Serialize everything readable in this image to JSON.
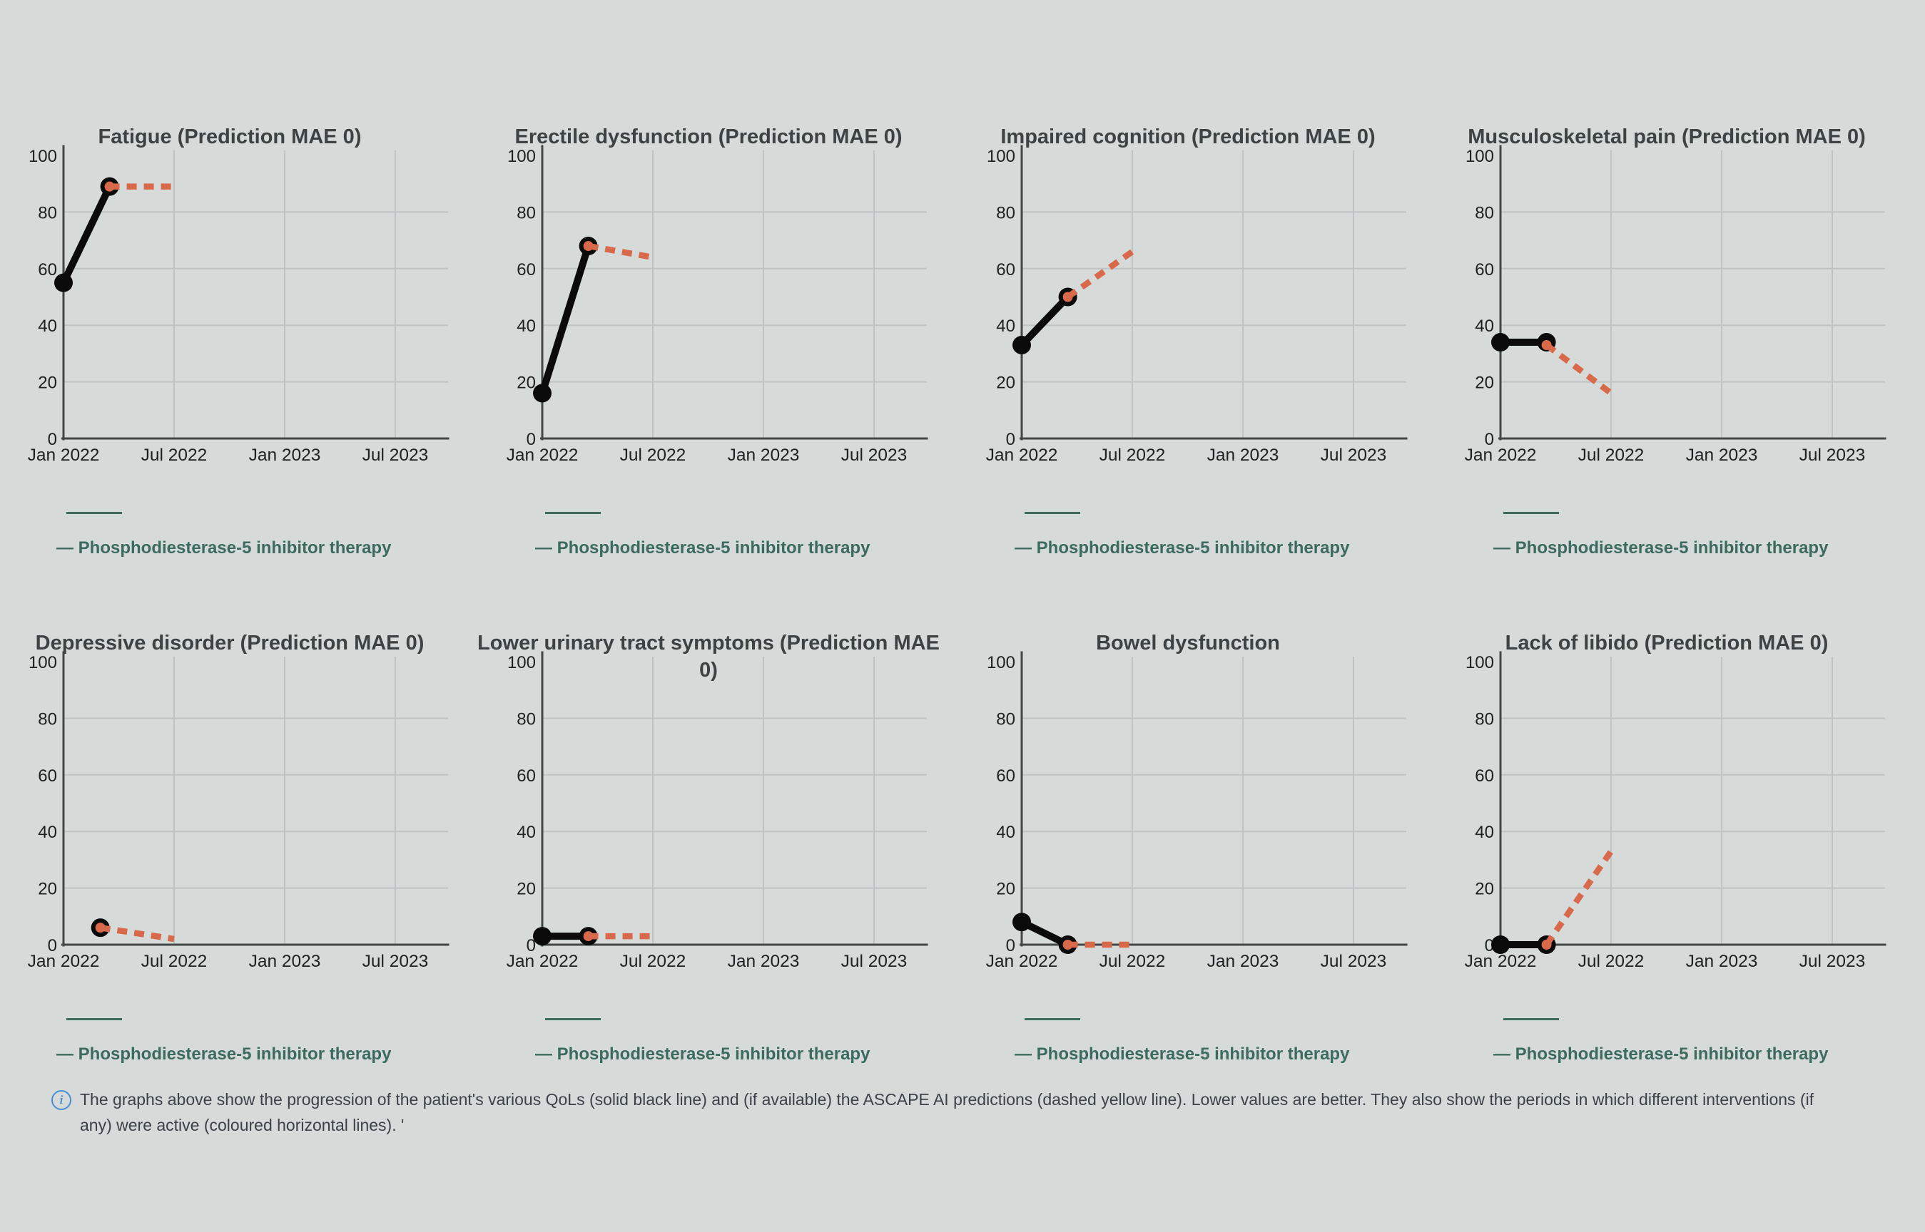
{
  "legend": {
    "label": "— Phosphodiesterase-5 inhibitor therapy"
  },
  "note": {
    "icon_glyph": "i",
    "text": "The graphs above show the progression of the patient's various QoLs (solid black line) and (if available) the ASCAPE AI predictions (dashed yellow line). Lower values are better. They also show the periods in which different interventions (if any) were active (coloured horizontal lines). '"
  },
  "colors": {
    "background": "#d6dbda",
    "observed_line": "#0b0b0b",
    "prediction_line": "#d8694a",
    "intervention_line": "#3c6b5e",
    "legend_text": "#3c6b5e",
    "grid": "#bdc4c3",
    "axis": "#424747",
    "title_text": "#3d4343",
    "tick_text": "#1d2121",
    "note_text": "#3b4147",
    "info_icon": "#4a8fd3"
  },
  "chart_data": [
    {
      "type": "line",
      "title": "Fatigue (Prediction MAE 0)",
      "x_unit": "months since Jan 2022",
      "xtick_months": [
        0,
        6,
        12,
        18
      ],
      "xtick_labels": [
        "Jan 2022",
        "Jul 2022",
        "Jan 2023",
        "Jul 2023"
      ],
      "ylim": [
        0,
        100
      ],
      "yticks": [
        0,
        20,
        40,
        60,
        80,
        100
      ],
      "series": [
        {
          "name": "Patient QoL (observed)",
          "style": "solid-black",
          "points": [
            [
              0,
              55
            ],
            [
              2.5,
              89
            ]
          ]
        },
        {
          "name": "ASCAPE AI prediction",
          "style": "dashed-orange",
          "points": [
            [
              2.5,
              89
            ],
            [
              6,
              89
            ]
          ]
        }
      ],
      "intervention_period_label": "Phosphodiesterase-5 inhibitor therapy"
    },
    {
      "type": "line",
      "title": "Erectile dysfunction (Prediction MAE 0)",
      "x_unit": "months since Jan 2022",
      "xtick_months": [
        0,
        6,
        12,
        18
      ],
      "xtick_labels": [
        "Jan 2022",
        "Jul 2022",
        "Jan 2023",
        "Jul 2023"
      ],
      "ylim": [
        0,
        100
      ],
      "yticks": [
        0,
        20,
        40,
        60,
        80,
        100
      ],
      "series": [
        {
          "name": "Patient QoL (observed)",
          "style": "solid-black",
          "points": [
            [
              0,
              16
            ],
            [
              2.5,
              68
            ]
          ]
        },
        {
          "name": "ASCAPE AI prediction",
          "style": "dashed-orange",
          "points": [
            [
              2.5,
              68
            ],
            [
              6,
              64
            ]
          ]
        }
      ],
      "intervention_period_label": "Phosphodiesterase-5 inhibitor therapy"
    },
    {
      "type": "line",
      "title": "Impaired cognition (Prediction MAE 0)",
      "x_unit": "months since Jan 2022",
      "xtick_months": [
        0,
        6,
        12,
        18
      ],
      "xtick_labels": [
        "Jan 2022",
        "Jul 2022",
        "Jan 2023",
        "Jul 2023"
      ],
      "ylim": [
        0,
        100
      ],
      "yticks": [
        0,
        20,
        40,
        60,
        80,
        100
      ],
      "series": [
        {
          "name": "Patient QoL (observed)",
          "style": "solid-black",
          "points": [
            [
              0,
              33
            ],
            [
              2.5,
              50
            ]
          ]
        },
        {
          "name": "ASCAPE AI prediction",
          "style": "dashed-orange",
          "points": [
            [
              2.5,
              50
            ],
            [
              6,
              66
            ]
          ]
        }
      ],
      "intervention_period_label": "Phosphodiesterase-5 inhibitor therapy"
    },
    {
      "type": "line",
      "title": "Musculoskeletal pain (Prediction MAE 0)",
      "x_unit": "months since Jan 2022",
      "xtick_months": [
        0,
        6,
        12,
        18
      ],
      "xtick_labels": [
        "Jan 2022",
        "Jul 2022",
        "Jan 2023",
        "Jul 2023"
      ],
      "ylim": [
        0,
        100
      ],
      "yticks": [
        0,
        20,
        40,
        60,
        80,
        100
      ],
      "series": [
        {
          "name": "Patient QoL (observed)",
          "style": "solid-black",
          "points": [
            [
              0,
              34
            ],
            [
              2.5,
              34
            ]
          ]
        },
        {
          "name": "ASCAPE AI prediction",
          "style": "dashed-orange",
          "points": [
            [
              2.5,
              33
            ],
            [
              6,
              16
            ]
          ]
        }
      ],
      "intervention_period_label": "Phosphodiesterase-5 inhibitor therapy"
    },
    {
      "type": "line",
      "title": "Depressive disorder (Prediction MAE 0)",
      "x_unit": "months since Jan 2022",
      "xtick_months": [
        0,
        6,
        12,
        18
      ],
      "xtick_labels": [
        "Jan 2022",
        "Jul 2022",
        "Jan 2023",
        "Jul 2023"
      ],
      "ylim": [
        0,
        100
      ],
      "yticks": [
        0,
        20,
        40,
        60,
        80,
        100
      ],
      "series": [
        {
          "name": "Patient QoL (observed)",
          "style": "solid-black",
          "points": [
            [
              2,
              6
            ]
          ]
        },
        {
          "name": "ASCAPE AI prediction",
          "style": "dashed-orange",
          "points": [
            [
              2,
              6
            ],
            [
              6,
              2
            ]
          ]
        }
      ],
      "intervention_period_label": "Phosphodiesterase-5 inhibitor therapy"
    },
    {
      "type": "line",
      "title": "Lower urinary tract symptoms (Prediction MAE 0)",
      "x_unit": "months since Jan 2022",
      "xtick_months": [
        0,
        6,
        12,
        18
      ],
      "xtick_labels": [
        "Jan 2022",
        "Jul 2022",
        "Jan 2023",
        "Jul 2023"
      ],
      "ylim": [
        0,
        100
      ],
      "yticks": [
        0,
        20,
        40,
        60,
        80,
        100
      ],
      "series": [
        {
          "name": "Patient QoL (observed)",
          "style": "solid-black",
          "points": [
            [
              0,
              3
            ],
            [
              2.5,
              3
            ]
          ]
        },
        {
          "name": "ASCAPE AI prediction",
          "style": "dashed-orange",
          "points": [
            [
              2.5,
              3
            ],
            [
              6,
              3
            ]
          ]
        }
      ],
      "intervention_period_label": "Phosphodiesterase-5 inhibitor therapy"
    },
    {
      "type": "line",
      "title": "Bowel dysfunction",
      "x_unit": "months since Jan 2022",
      "xtick_months": [
        0,
        6,
        12,
        18
      ],
      "xtick_labels": [
        "Jan 2022",
        "Jul 2022",
        "Jan 2023",
        "Jul 2023"
      ],
      "ylim": [
        0,
        100
      ],
      "yticks": [
        0,
        20,
        40,
        60,
        80,
        100
      ],
      "series": [
        {
          "name": "Patient QoL (observed)",
          "style": "solid-black",
          "points": [
            [
              0,
              8
            ],
            [
              2.5,
              0
            ]
          ]
        },
        {
          "name": "ASCAPE AI prediction",
          "style": "dashed-orange",
          "points": [
            [
              2.5,
              0
            ],
            [
              6,
              0
            ]
          ]
        }
      ],
      "intervention_period_label": "Phosphodiesterase-5 inhibitor therapy"
    },
    {
      "type": "line",
      "title": "Lack of libido (Prediction MAE 0)",
      "x_unit": "months since Jan 2022",
      "xtick_months": [
        0,
        6,
        12,
        18
      ],
      "xtick_labels": [
        "Jan 2022",
        "Jul 2022",
        "Jan 2023",
        "Jul 2023"
      ],
      "ylim": [
        0,
        100
      ],
      "yticks": [
        0,
        20,
        40,
        60,
        80,
        100
      ],
      "series": [
        {
          "name": "Patient QoL (observed)",
          "style": "solid-black",
          "points": [
            [
              0,
              0
            ],
            [
              2.5,
              0
            ]
          ]
        },
        {
          "name": "ASCAPE AI prediction",
          "style": "dashed-orange",
          "points": [
            [
              2.5,
              0
            ],
            [
              6,
              33
            ]
          ]
        }
      ],
      "intervention_period_label": "Phosphodiesterase-5 inhibitor therapy"
    }
  ]
}
